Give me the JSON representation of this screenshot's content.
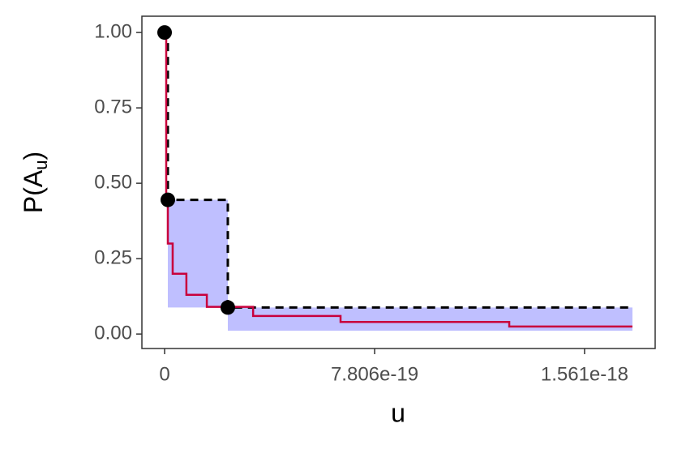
{
  "chart_data": {
    "type": "step",
    "x_label": "u",
    "y_label": {
      "base": "P(A",
      "sub": "u",
      "end": ")"
    },
    "xlim": [
      -8.44e-20,
      1.8234e-18
    ],
    "ylim": [
      -0.048,
      1.054
    ],
    "xticks": [
      0,
      7.806e-19,
      1.561e-18
    ],
    "yticks": [
      {
        "value": 0,
        "label": "0.00"
      },
      {
        "value": 0.25,
        "label": "0.25"
      },
      {
        "value": 0.5,
        "label": "0.50"
      },
      {
        "value": 0.75,
        "label": "0.75"
      },
      {
        "value": 1,
        "label": "1.00"
      }
    ],
    "ribbon": {
      "color": "#bfbfff",
      "segments": [
        {
          "x0": 1.2e-20,
          "x1": 2.35e-19,
          "lower": 0.088,
          "upper": 0.445
        },
        {
          "x0": 2.35e-19,
          "x1": 1.739e-18,
          "lower": 0.011,
          "upper": 0.088
        }
      ]
    },
    "bound": {
      "color": "#000000",
      "x": [
        0,
        1.2e-20,
        2.35e-19,
        1.739e-18
      ],
      "values": [
        1.0,
        0.445,
        0.088,
        0.088
      ]
    },
    "line": {
      "color": "#c8003c",
      "x": [
        0,
        6e-21,
        1.2e-20,
        3e-20,
        8.1e-20,
        1.57e-19,
        3.29e-19,
        6.54e-19,
        1.281e-18,
        1.739e-18
      ],
      "values": [
        1.0,
        0.45,
        0.3,
        0.2,
        0.13,
        0.09,
        0.06,
        0.04,
        0.025,
        0.025
      ]
    },
    "points": {
      "color": "#000000",
      "x": [
        0,
        1.2e-20,
        2.35e-19
      ],
      "values": [
        1.0,
        0.445,
        0.088
      ]
    }
  }
}
